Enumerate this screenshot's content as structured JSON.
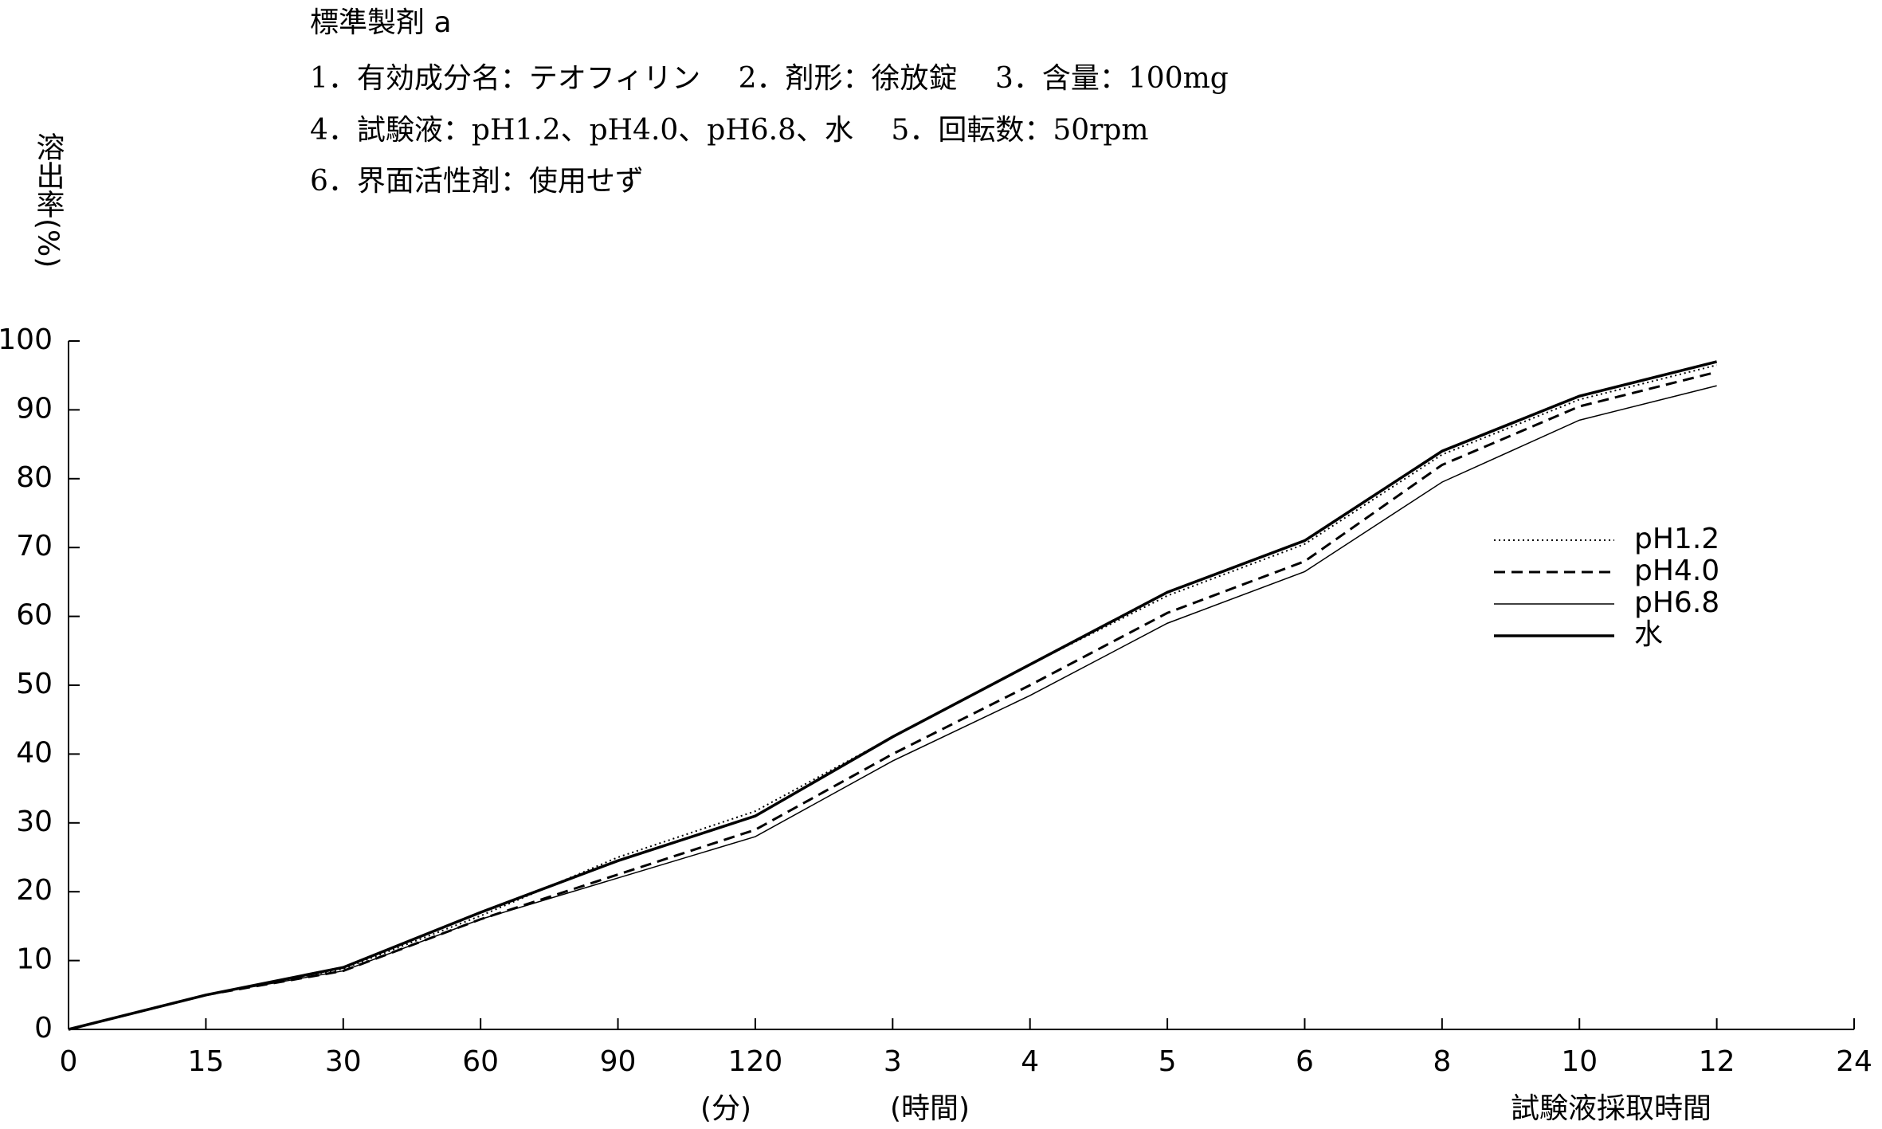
{
  "chart_data": {
    "type": "line",
    "header": [
      "標準製剤 a",
      "1．有効成分名：テオフィリン　 2．剤形：徐放錠　 3．含量：100mg",
      "4．試験液：pH1.2、pH4.0、pH6.8、水　 5．回転数：50rpm",
      "6．界面活性剤：使用せず"
    ],
    "y_label": "溶出率(%)",
    "x_unit_labels": [
      "(分)",
      "(時間)"
    ],
    "x_label": "試験液採取時間",
    "categories": [
      "0",
      "15",
      "30",
      "60",
      "90",
      "120",
      "3",
      "4",
      "5",
      "6",
      "8",
      "10",
      "12",
      "24"
    ],
    "series": [
      {
        "name": "pH1.2",
        "color": "#000000",
        "style": "dotted",
        "values": [
          0,
          5,
          8.8,
          16.5,
          25,
          31.7,
          42.5,
          53,
          63,
          70.5,
          83.5,
          91.5,
          96.5,
          null
        ]
      },
      {
        "name": "pH4.0",
        "color": "#000000",
        "style": "dashed",
        "values": [
          0,
          5,
          8.5,
          16,
          22.5,
          29,
          40,
          50,
          60.5,
          68,
          82,
          90.5,
          95.5,
          null
        ]
      },
      {
        "name": "pH6.8",
        "color": "#000000",
        "style": "thin",
        "values": [
          0,
          5,
          8.5,
          16,
          22,
          28,
          39,
          48.5,
          59,
          66.5,
          79.5,
          88.5,
          93.5,
          null
        ]
      },
      {
        "name": "水",
        "color": "#000000",
        "style": "solid",
        "values": [
          0,
          5,
          9,
          17,
          24.5,
          31,
          42.5,
          53,
          63.5,
          71,
          84,
          92,
          97,
          null
        ]
      }
    ],
    "ylim": [
      0,
      100
    ],
    "yticks": [
      0,
      10,
      20,
      30,
      40,
      50,
      60,
      70,
      80,
      90,
      100
    ],
    "legend": "right"
  }
}
